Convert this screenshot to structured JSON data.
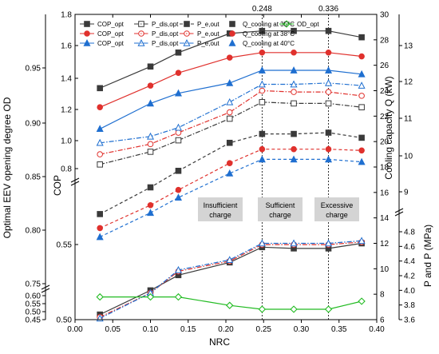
{
  "chart_data": {
    "type": "line",
    "xlabel": "NRC",
    "x_ticks": [
      "0.00",
      "0.05",
      "0.10",
      "0.15",
      "0.20",
      "0.25",
      "0.30",
      "0.35",
      "0.40"
    ],
    "xlim": [
      0.0,
      0.4
    ],
    "x": [
      0.033,
      0.1,
      0.137,
      0.205,
      0.248,
      0.29,
      0.336,
      0.38
    ],
    "vlines": [
      "0.248",
      "0.336"
    ],
    "left_outer_label": "Optimal EEV opening degree OD_opt",
    "left_outer_ticks": [
      "0.95",
      "0.90",
      "0.85",
      "0.80",
      "0.75",
      "0.60",
      "0.55",
      "0.50",
      "0.45"
    ],
    "left_inner_label": "COP_opt",
    "left_inner_ticks_upper": [
      "1.8",
      "1.6",
      "1.4",
      "1.2",
      "1.0",
      "0.8"
    ],
    "left_inner_ticks_lower": [
      "0.55",
      "0.50"
    ],
    "right_inner_label": "Cooling capacity Q_cooling (kW)",
    "right_inner_ticks": [
      "30",
      "28",
      "26",
      "24",
      "22",
      "20",
      "18",
      "16",
      "14",
      "12",
      "10",
      "8",
      "6"
    ],
    "right_outer_label": "P_dis,opt and P_e,out (MPa)",
    "right_outer_ticks_upper": [
      "13",
      "12",
      "11",
      "10",
      "9"
    ],
    "right_outer_ticks_lower": [
      "4.8",
      "4.6",
      "4.4",
      "4.2",
      "4.0",
      "3.8",
      "3.6"
    ],
    "regions": [
      "Insufficient\ncharge",
      "Sufficient\ncharge",
      "Excessive\ncharge"
    ],
    "legend": [
      [
        "COP_opt",
        "P_dis,opt",
        "P_e,out",
        "Q_cooling at 35°C",
        "OD_opt"
      ],
      [
        "COP_opt",
        "P_dis,opt",
        "P_e,out",
        "Q_cooling at 38°C"
      ],
      [
        "COP_opt",
        "P_dis,opt",
        "P_e,out",
        "Q_cooling at 40°C"
      ]
    ],
    "colors": {
      "t35": "#3a3a3a",
      "t38": "#e0312d",
      "t40": "#1f6fd0",
      "od": "#22bb22"
    },
    "series": [
      {
        "key": "cop35",
        "temp": "t35",
        "style": "solid",
        "marker": "square",
        "filled": true,
        "axis": "cooling",
        "values": [
          24.2,
          25.9,
          27.0,
          28.5,
          28.7,
          28.7,
          28.7,
          28.2
        ]
      },
      {
        "key": "cop38",
        "temp": "t38",
        "style": "solid",
        "marker": "circle",
        "filled": true,
        "axis": "cooling",
        "values": [
          22.7,
          24.4,
          25.4,
          26.6,
          27.0,
          27.0,
          27.0,
          26.7
        ]
      },
      {
        "key": "cop40",
        "temp": "t40",
        "style": "solid",
        "marker": "triangle",
        "filled": true,
        "axis": "cooling",
        "values": [
          21.0,
          23.0,
          23.8,
          24.6,
          25.6,
          25.6,
          25.6,
          25.3
        ]
      },
      {
        "key": "pdis35",
        "temp": "t35",
        "style": "dashdot",
        "marker": "square",
        "filled": false,
        "axis": "cooling",
        "values": [
          18.2,
          19.2,
          20.1,
          21.8,
          23.1,
          23.0,
          23.0,
          22.7
        ]
      },
      {
        "key": "pdis38",
        "temp": "t38",
        "style": "dashdot",
        "marker": "circle",
        "filled": false,
        "axis": "cooling",
        "values": [
          19.0,
          19.8,
          20.7,
          22.3,
          24.0,
          23.9,
          23.9,
          23.6
        ]
      },
      {
        "key": "pdis40",
        "temp": "t40",
        "style": "dashdot",
        "marker": "triangle",
        "filled": false,
        "axis": "cooling",
        "values": [
          19.9,
          20.4,
          21.1,
          23.1,
          24.5,
          24.5,
          24.6,
          24.4
        ]
      },
      {
        "key": "pe35",
        "temp": "t35",
        "style": "dashed",
        "marker": "square",
        "filled": true,
        "axis": "cooling",
        "values": [
          14.3,
          16.4,
          17.7,
          19.9,
          20.6,
          20.6,
          20.7,
          20.3
        ]
      },
      {
        "key": "pe38",
        "temp": "t38",
        "style": "dashed",
        "marker": "circle",
        "filled": true,
        "axis": "cooling",
        "values": [
          13.2,
          15.0,
          16.2,
          18.3,
          19.4,
          19.4,
          19.4,
          19.3
        ]
      },
      {
        "key": "pe40",
        "temp": "t40",
        "style": "dashed",
        "marker": "triangle",
        "filled": true,
        "axis": "cooling",
        "values": [
          12.5,
          14.4,
          15.6,
          17.5,
          18.6,
          18.6,
          18.6,
          18.4
        ]
      },
      {
        "key": "q35",
        "temp": "t35",
        "style": "solid",
        "marker": "square",
        "filled": true,
        "axis": "cooling",
        "values": [
          6.4,
          8.3,
          9.5,
          10.5,
          11.7,
          11.6,
          11.6,
          12.0
        ]
      },
      {
        "key": "q38",
        "temp": "t38",
        "style": "dashdot",
        "marker": "circle",
        "filled": false,
        "axis": "cooling",
        "values": [
          6.2,
          8.1,
          9.8,
          10.6,
          11.9,
          11.9,
          11.9,
          12.1
        ]
      },
      {
        "key": "q40",
        "temp": "t40",
        "style": "dashdot",
        "marker": "triangle",
        "filled": false,
        "axis": "cooling",
        "values": [
          6.1,
          8.1,
          9.9,
          10.7,
          12.0,
          12.0,
          12.0,
          12.2
        ]
      },
      {
        "key": "od",
        "temp": "od",
        "style": "solid",
        "marker": "diamond",
        "filled": false,
        "axis": "od",
        "values": [
          0.592,
          0.592,
          0.592,
          0.539,
          0.515,
          0.515,
          0.515,
          0.565
        ]
      }
    ]
  }
}
